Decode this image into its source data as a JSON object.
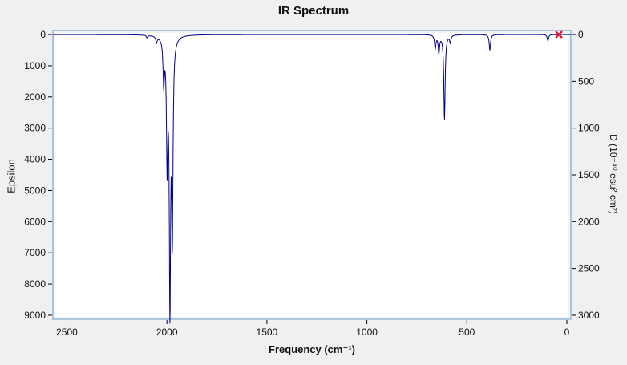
{
  "chart_data": {
    "type": "line",
    "title": "IR Spectrum",
    "xlabel": "Frequency (cm⁻¹)",
    "ylabel_left": "Epsilon",
    "ylabel_right": "D (10⁻⁴⁰ esu² cm²)",
    "x_reversed": true,
    "y_inverted": true,
    "grid": false,
    "x_domain": [
      2570,
      -20
    ],
    "x_ticks": [
      2500,
      2000,
      1500,
      1000,
      500,
      0
    ],
    "y_left_domain": [
      -130,
      9130
    ],
    "y_left_ticks": [
      0,
      1000,
      2000,
      3000,
      4000,
      5000,
      6000,
      7000,
      8000,
      9000
    ],
    "y_right_domain": [
      -43.3,
      3043.3
    ],
    "y_right_ticks": [
      0,
      500,
      1000,
      1500,
      2000,
      2500,
      3000
    ],
    "line_color": "#00008b",
    "frame_color": "#a9c5d6",
    "plot_background": "#ffffff",
    "background": "#f0f0f0",
    "peak_halfwidth_cm": 4,
    "peaks": [
      {
        "freq": 2100,
        "epsilon": 80
      },
      {
        "freq": 2052,
        "epsilon": 200
      },
      {
        "freq": 2016,
        "epsilon": 1400
      },
      {
        "freq": 1999,
        "epsilon": 3850
      },
      {
        "freq": 1985,
        "epsilon": 8350
      },
      {
        "freq": 1973,
        "epsilon": 6050
      },
      {
        "freq": 658,
        "epsilon": 420
      },
      {
        "freq": 640,
        "epsilon": 560
      },
      {
        "freq": 612,
        "epsilon": 2700
      },
      {
        "freq": 583,
        "epsilon": 230
      },
      {
        "freq": 385,
        "epsilon": 500
      },
      {
        "freq": 95,
        "epsilon": 200
      }
    ],
    "marker": {
      "freq": 40,
      "epsilon": 0,
      "color": "#e8112d",
      "shape": "x"
    }
  }
}
